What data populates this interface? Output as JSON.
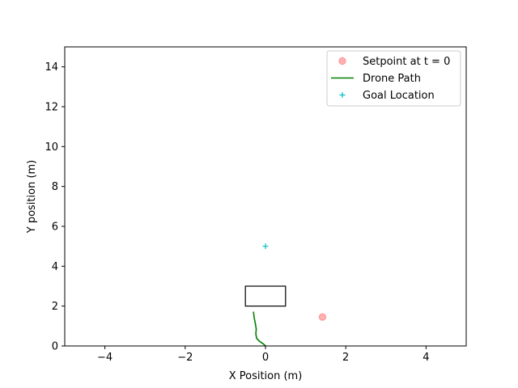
{
  "chart_data": {
    "type": "line",
    "xlabel": "X Position (m)",
    "ylabel": "Y position (m)",
    "xlim": [
      -5,
      5
    ],
    "ylim": [
      0,
      15
    ],
    "xticks": [
      -4,
      -2,
      0,
      2,
      4
    ],
    "yticks": [
      0,
      2,
      4,
      6,
      8,
      10,
      12,
      14
    ],
    "xtick_labels": [
      "−4",
      "−2",
      "0",
      "2",
      "4"
    ],
    "ytick_labels": [
      "0",
      "2",
      "4",
      "6",
      "8",
      "10",
      "12",
      "14"
    ],
    "grid": false,
    "legend_position": "top-right",
    "series": [
      {
        "name": "Setpoint at t = 0",
        "kind": "marker-circle",
        "color": "#ff0000",
        "alpha": 0.3,
        "x": [
          1.42
        ],
        "y": [
          1.45
        ]
      },
      {
        "name": "Drone Path",
        "kind": "line",
        "color": "#008000",
        "x": [
          0.0,
          -0.05,
          -0.14,
          -0.22,
          -0.24,
          -0.23,
          -0.25,
          -0.28,
          -0.3
        ],
        "y": [
          0.0,
          0.1,
          0.22,
          0.38,
          0.6,
          0.85,
          1.1,
          1.4,
          1.72
        ]
      },
      {
        "name": "Goal Location",
        "kind": "marker-plus",
        "color": "#00bfbf",
        "x": [
          0.0
        ],
        "y": [
          5.0
        ]
      }
    ],
    "rectangles": [
      {
        "x0": -0.5,
        "y0": 2.0,
        "x1": 0.5,
        "y1": 3.0,
        "color": "#000000"
      }
    ]
  }
}
